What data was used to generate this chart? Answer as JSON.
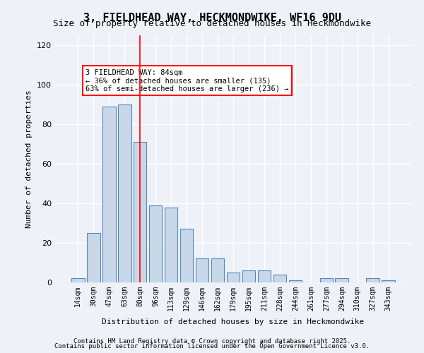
{
  "title1": "3, FIELDHEAD WAY, HECKMONDWIKE, WF16 9DU",
  "title2": "Size of property relative to detached houses in Heckmondwike",
  "xlabel": "Distribution of detached houses by size in Heckmondwike",
  "ylabel": "Number of detached properties",
  "categories": [
    "14sqm",
    "30sqm",
    "47sqm",
    "63sqm",
    "80sqm",
    "96sqm",
    "113sqm",
    "129sqm",
    "146sqm",
    "162sqm",
    "179sqm",
    "195sqm",
    "211sqm",
    "228sqm",
    "244sqm",
    "261sqm",
    "277sqm",
    "294sqm",
    "310sqm",
    "327sqm",
    "343sqm"
  ],
  "values": [
    2,
    25,
    89,
    90,
    71,
    39,
    38,
    27,
    12,
    12,
    5,
    6,
    6,
    4,
    1,
    0,
    2,
    2,
    0,
    2,
    1
  ],
  "bar_color": "#c8d8e8",
  "bar_edge_color": "#5588bb",
  "vline_x": 4,
  "vline_color": "red",
  "annotation_text": "3 FIELDHEAD WAY: 84sqm\n← 36% of detached houses are smaller (135)\n63% of semi-detached houses are larger (236) →",
  "annotation_box_color": "white",
  "annotation_box_edge": "red",
  "ylim": [
    0,
    125
  ],
  "yticks": [
    0,
    20,
    40,
    60,
    80,
    100,
    120
  ],
  "background_color": "#eef2f8",
  "grid_color": "white",
  "footer1": "Contains HM Land Registry data © Crown copyright and database right 2025.",
  "footer2": "Contains public sector information licensed under the Open Government Licence v3.0."
}
